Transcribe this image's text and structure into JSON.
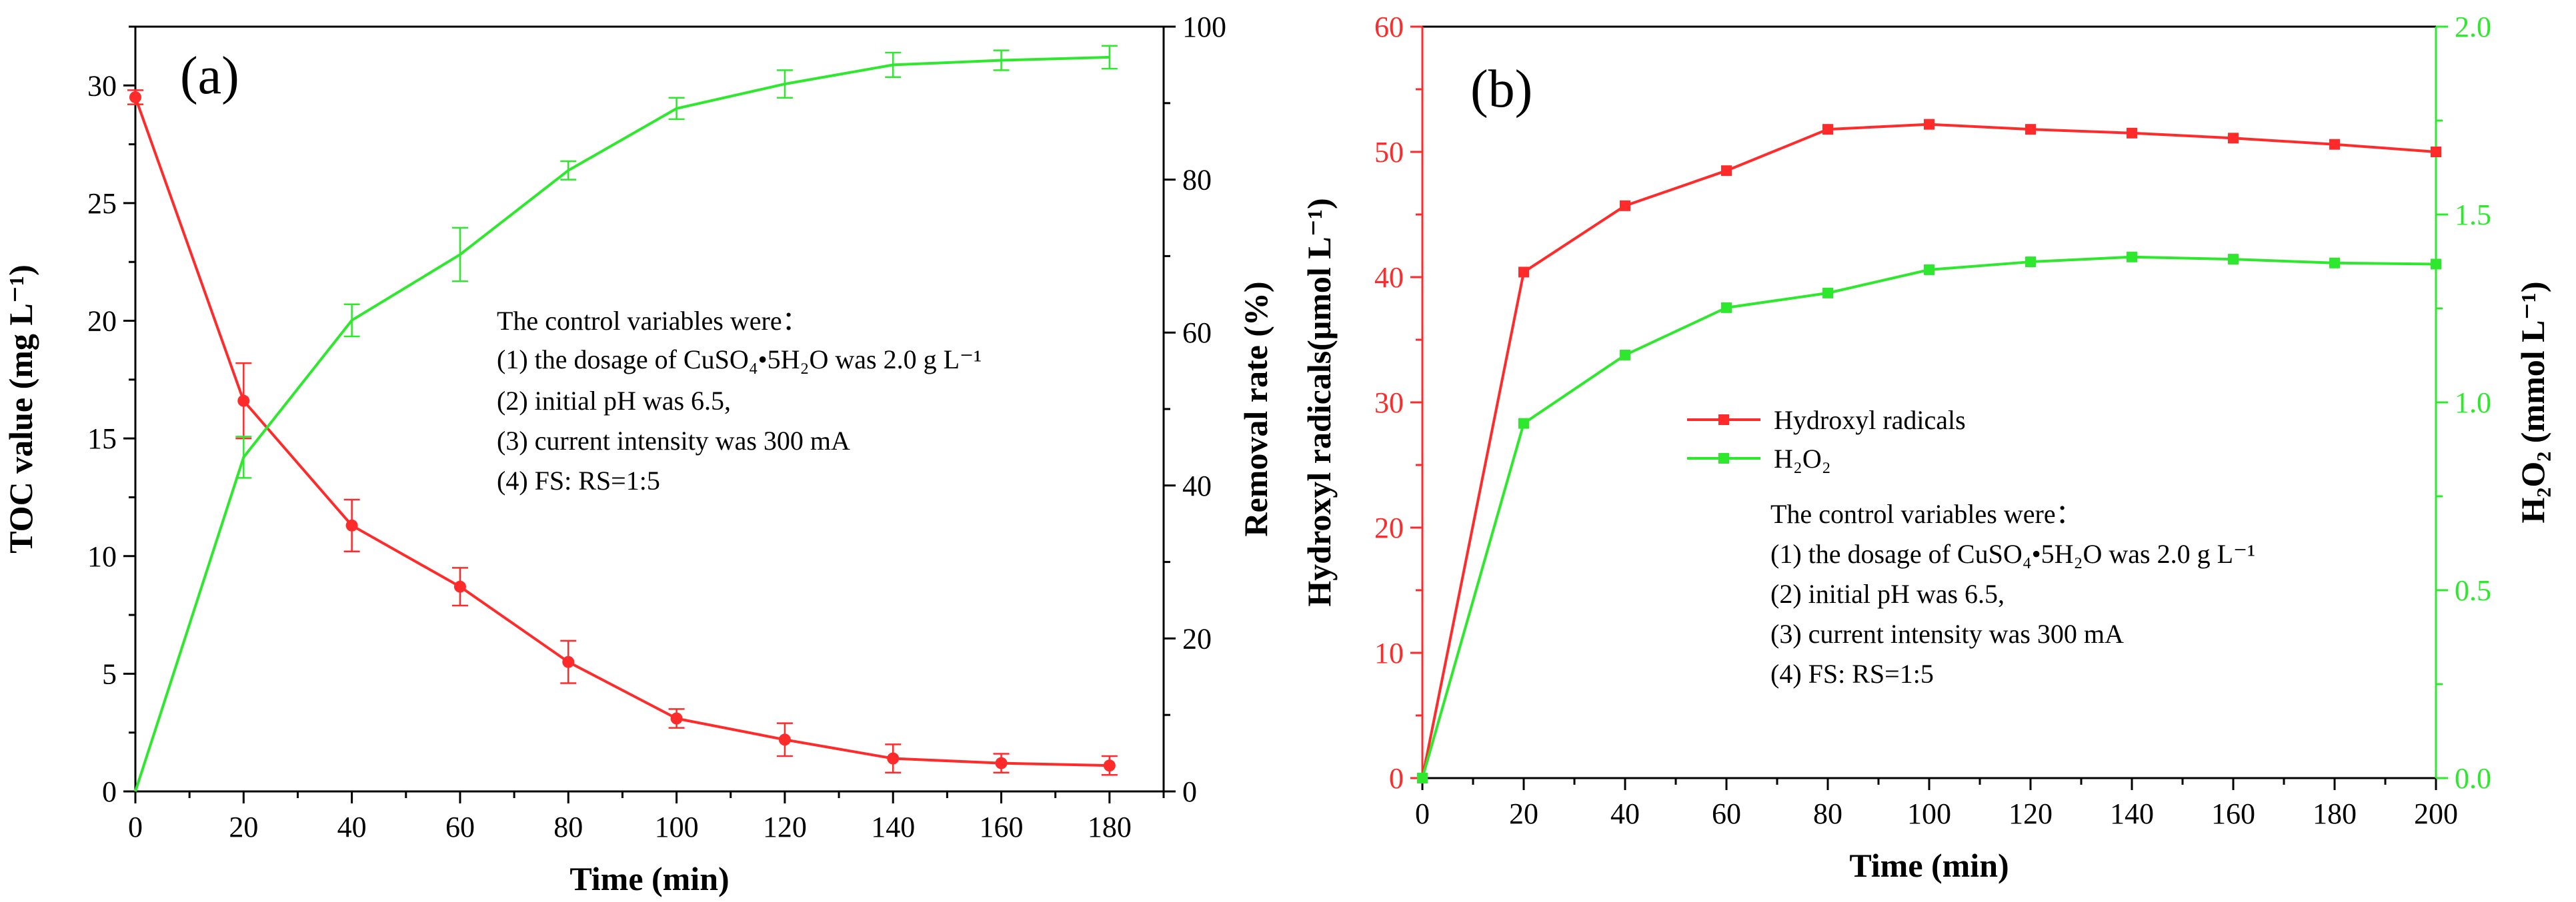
{
  "chart_data": [
    {
      "panel_label": "(a)",
      "type": "line",
      "x": [
        0,
        20,
        40,
        60,
        80,
        100,
        120,
        140,
        160,
        180
      ],
      "xlabel": "Time (min)",
      "xlim": [
        0,
        190
      ],
      "xticks": [
        0,
        20,
        40,
        60,
        80,
        100,
        120,
        140,
        160,
        180
      ],
      "ylabel_left": "TOC value (mg L⁻¹)",
      "ylim_left": [
        0,
        32.5
      ],
      "yticks_left": [
        0,
        5,
        10,
        15,
        20,
        25,
        30
      ],
      "ylabel_right": "Removal rate (%)",
      "ylim_right": [
        0,
        100
      ],
      "yticks_right": [
        0,
        20,
        40,
        60,
        80,
        100
      ],
      "series": [
        {
          "name": "TOC value",
          "axis": "left",
          "color": "#ff2a2a",
          "marker": "circle",
          "values": [
            29.5,
            16.6,
            11.3,
            8.7,
            5.5,
            3.1,
            2.2,
            1.4,
            1.2,
            1.1
          ],
          "errors": [
            0.3,
            1.6,
            1.1,
            0.8,
            0.9,
            0.4,
            0.7,
            0.6,
            0.4,
            0.4
          ]
        },
        {
          "name": "Removal rate",
          "axis": "right",
          "color": "#2ee82e",
          "marker": "none",
          "values": [
            0,
            43.7,
            61.6,
            70.2,
            81.2,
            89.3,
            92.5,
            95.0,
            95.6,
            96.0
          ],
          "errors": [
            0,
            2.7,
            2.1,
            3.5,
            1.2,
            1.4,
            1.8,
            1.6,
            1.3,
            1.5
          ]
        }
      ],
      "annotation": {
        "title": "The control variables were：",
        "lines": [
          "(1) the dosage of CuSO₄•5H₂O was 2.0 g L⁻¹",
          "(2) initial pH was 6.5,",
          "(3) current intensity was 300 mA",
          "(4) FS: RS=1:5"
        ]
      }
    },
    {
      "panel_label": "(b)",
      "type": "line",
      "x": [
        0,
        20,
        40,
        60,
        80,
        100,
        120,
        140,
        160,
        180,
        200
      ],
      "xlabel": "Time (min)",
      "xlim": [
        0,
        200
      ],
      "xticks": [
        0,
        20,
        40,
        60,
        80,
        100,
        120,
        140,
        160,
        180,
        200
      ],
      "ylabel_left": "Hydroxyl radicals(μmol L⁻¹)",
      "ylim_left": [
        0,
        60
      ],
      "yticks_left": [
        0,
        10,
        20,
        30,
        40,
        50,
        60
      ],
      "ylabel_right": "H₂O₂ (mmol L⁻¹)",
      "ylim_right": [
        0,
        2.0
      ],
      "yticks_right": [
        "0.0",
        "0.5",
        "1.0",
        "1.5",
        "2.0"
      ],
      "series": [
        {
          "name": "Hydroxyl radicals",
          "axis": "left",
          "color": "#ff2a2a",
          "marker": "square",
          "values": [
            0,
            40.4,
            45.7,
            48.5,
            51.8,
            52.2,
            51.8,
            51.5,
            51.1,
            50.6,
            50.0
          ]
        },
        {
          "name": "H₂O₂",
          "axis": "right",
          "color": "#2ee82e",
          "marker": "square",
          "values": [
            0,
            0.944,
            1.126,
            1.252,
            1.291,
            1.353,
            1.374,
            1.387,
            1.381,
            1.371,
            1.368
          ]
        }
      ],
      "legend": [
        "Hydroxyl radicals",
        "H₂O₂"
      ],
      "annotation": {
        "title": "The control variables were：",
        "lines": [
          "(1) the dosage of CuSO₄•5H₂O was 2.0 g L⁻¹",
          "(2) initial pH was 6.5,",
          "(3) current intensity was 300 mA",
          "(4) FS: RS=1:5"
        ]
      }
    }
  ]
}
